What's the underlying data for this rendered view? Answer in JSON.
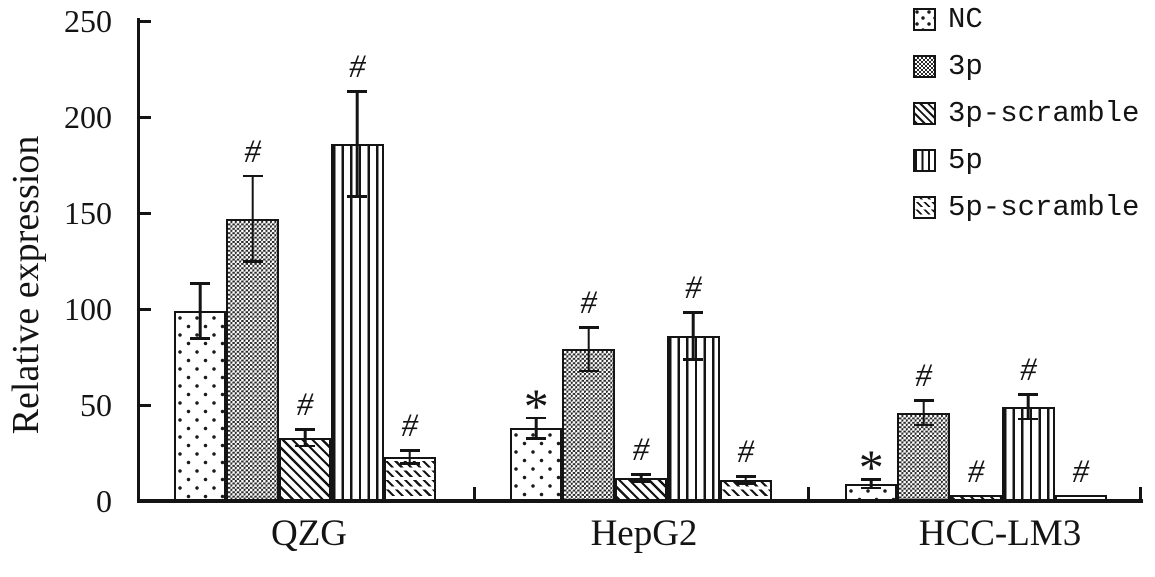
{
  "figure": {
    "background": "#ffffff",
    "ink_color": "#141414"
  },
  "chart_data": {
    "type": "bar",
    "title": "",
    "xlabel": "",
    "ylabel": "Relative expression",
    "ylim": [
      0,
      250
    ],
    "yticks": [
      0,
      50,
      100,
      150,
      200,
      250
    ],
    "grid": false,
    "legend_position": "top-right",
    "error_bars": true,
    "categories": [
      "QZG",
      "HepG2",
      "HCC-LM3"
    ],
    "series": [
      {
        "name": "NC",
        "pattern": "dots",
        "values": [
          99,
          38,
          9
        ],
        "errors": [
          15,
          6,
          3
        ],
        "markers": [
          "",
          "*",
          "*"
        ]
      },
      {
        "name": "3p",
        "pattern": "checker",
        "values": [
          147,
          79,
          46
        ],
        "errors": [
          23,
          12,
          7
        ],
        "markers": [
          "#",
          "#",
          "#"
        ]
      },
      {
        "name": "3p-scramble",
        "pattern": "diag",
        "values": [
          33,
          12,
          3
        ],
        "errors": [
          5,
          2.5,
          0
        ],
        "markers": [
          "#",
          "#",
          "#"
        ]
      },
      {
        "name": "5p",
        "pattern": "vert",
        "values": [
          186,
          86,
          49
        ],
        "errors": [
          28,
          13,
          7
        ],
        "markers": [
          "#",
          "#",
          "#"
        ]
      },
      {
        "name": "5p-scramble",
        "pattern": "diagdash",
        "values": [
          23,
          11,
          3
        ],
        "errors": [
          4,
          2.5,
          0
        ],
        "markers": [
          "#",
          "#",
          "#"
        ]
      }
    ]
  }
}
